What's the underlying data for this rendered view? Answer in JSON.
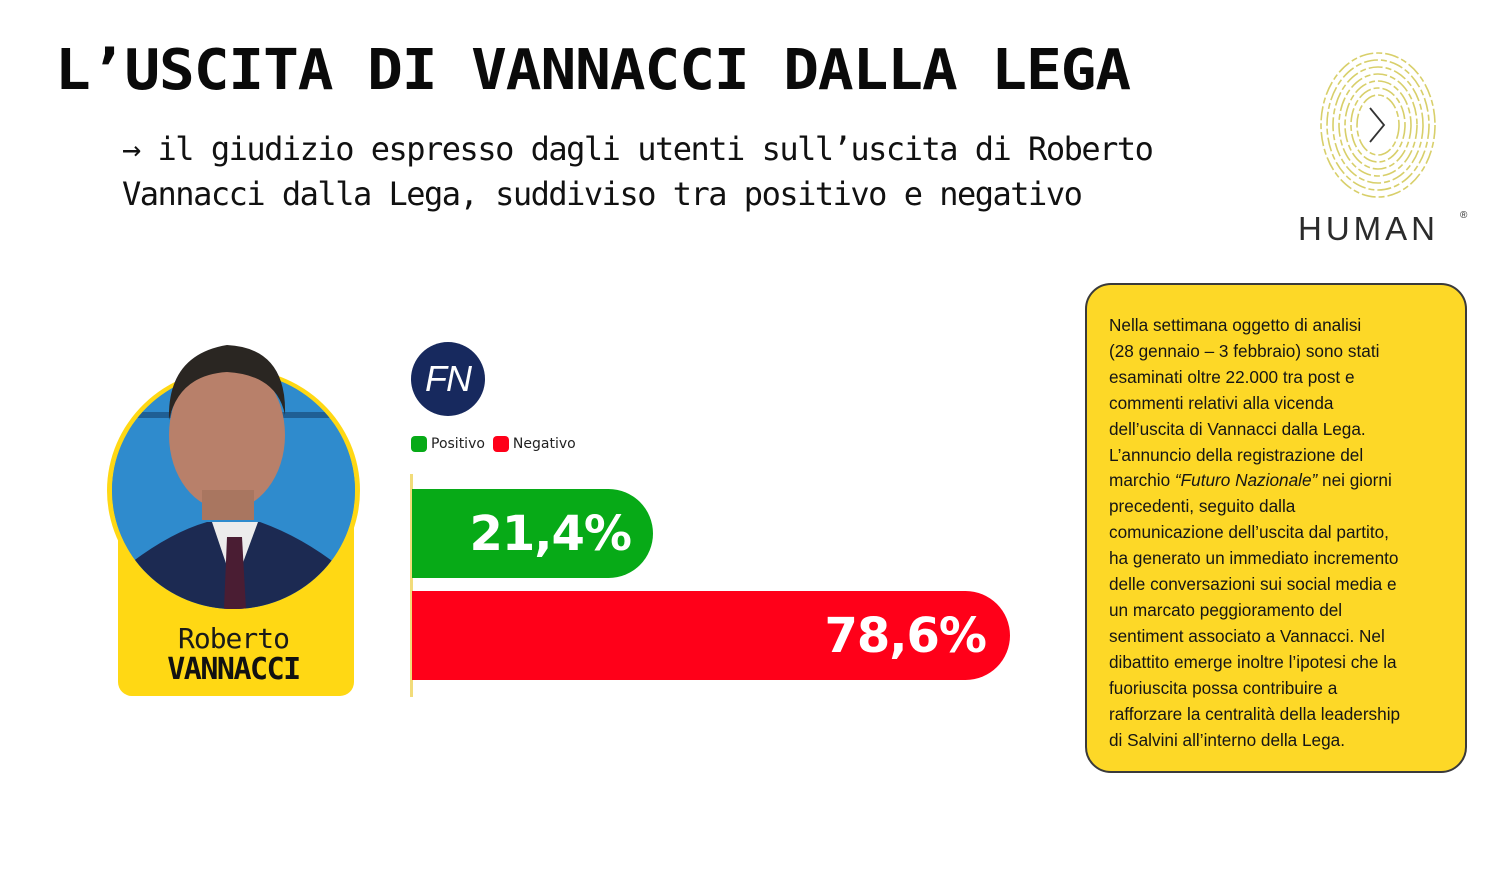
{
  "header": {
    "title": "L’USCITA DI VANNACCI DALLA LEGA",
    "subtitle": "→ il giudizio espresso dagli utenti sull’uscita di Roberto Vannacci dalla Lega, suddiviso tra positivo e negativo"
  },
  "logo": {
    "icon": "fingerprint-chevron-icon",
    "wordmark": "HUMAN",
    "registered": "®",
    "accent": "#d8cf6a"
  },
  "person": {
    "first_name": "Roberto",
    "last_name": "VANNACCI",
    "card_color": "#ffd814"
  },
  "party_badge": {
    "label": "FN",
    "color": "#17295e"
  },
  "legend": [
    {
      "label": "Positivo",
      "color": "#07aa17"
    },
    {
      "label": "Negativo",
      "color": "#ff0019"
    }
  ],
  "bars": [
    {
      "label": "21,4%",
      "value": 21.4,
      "color": "#07aa17"
    },
    {
      "label": "78,6%",
      "value": 78.6,
      "color": "#ff0019"
    }
  ],
  "note": {
    "lines": [
      "Nella settimana oggetto di analisi",
      "(28 gennaio – 3 febbraio) sono stati",
      "esaminati oltre 22.000 tra post e",
      "commenti relativi alla vicenda",
      "dell’uscita di Vannacci dalla Lega.",
      "L’annuncio della registrazione del"
    ],
    "line7_pre": "marchio ",
    "line7_italic": "“Futuro Nazionale”",
    "line7_post": " nei giorni",
    "lines_after": [
      "precedenti, seguito dalla",
      "comunicazione dell’uscita dal partito,",
      "ha generato un immediato incremento",
      "delle conversazioni sui social media e",
      "un marcato peggioramento del",
      "sentiment associato a Vannacci. Nel",
      "dibattito emerge inoltre l’ipotesi che la",
      "fuoriuscita possa contribuire a",
      "rafforzare la centralità della leadership",
      "di Salvini all’interno della Lega."
    ],
    "background": "#fdd827"
  },
  "chart_data": {
    "type": "bar",
    "orientation": "horizontal",
    "title": "L’USCITA DI VANNACCI DALLA LEGA",
    "subtitle": "il giudizio espresso dagli utenti sull’uscita di Roberto Vannacci dalla Lega, suddiviso tra positivo e negativo",
    "categories": [
      "Positivo",
      "Negativo"
    ],
    "values": [
      21.4,
      78.6
    ],
    "value_labels": [
      "21,4%",
      "78,6%"
    ],
    "colors": [
      "#07aa17",
      "#ff0019"
    ],
    "unit": "%",
    "xlabel": "",
    "ylabel": "",
    "xlim": [
      0,
      100
    ],
    "grid": false,
    "legend_position": "top-left",
    "legend": [
      "Positivo",
      "Negativo"
    ]
  }
}
